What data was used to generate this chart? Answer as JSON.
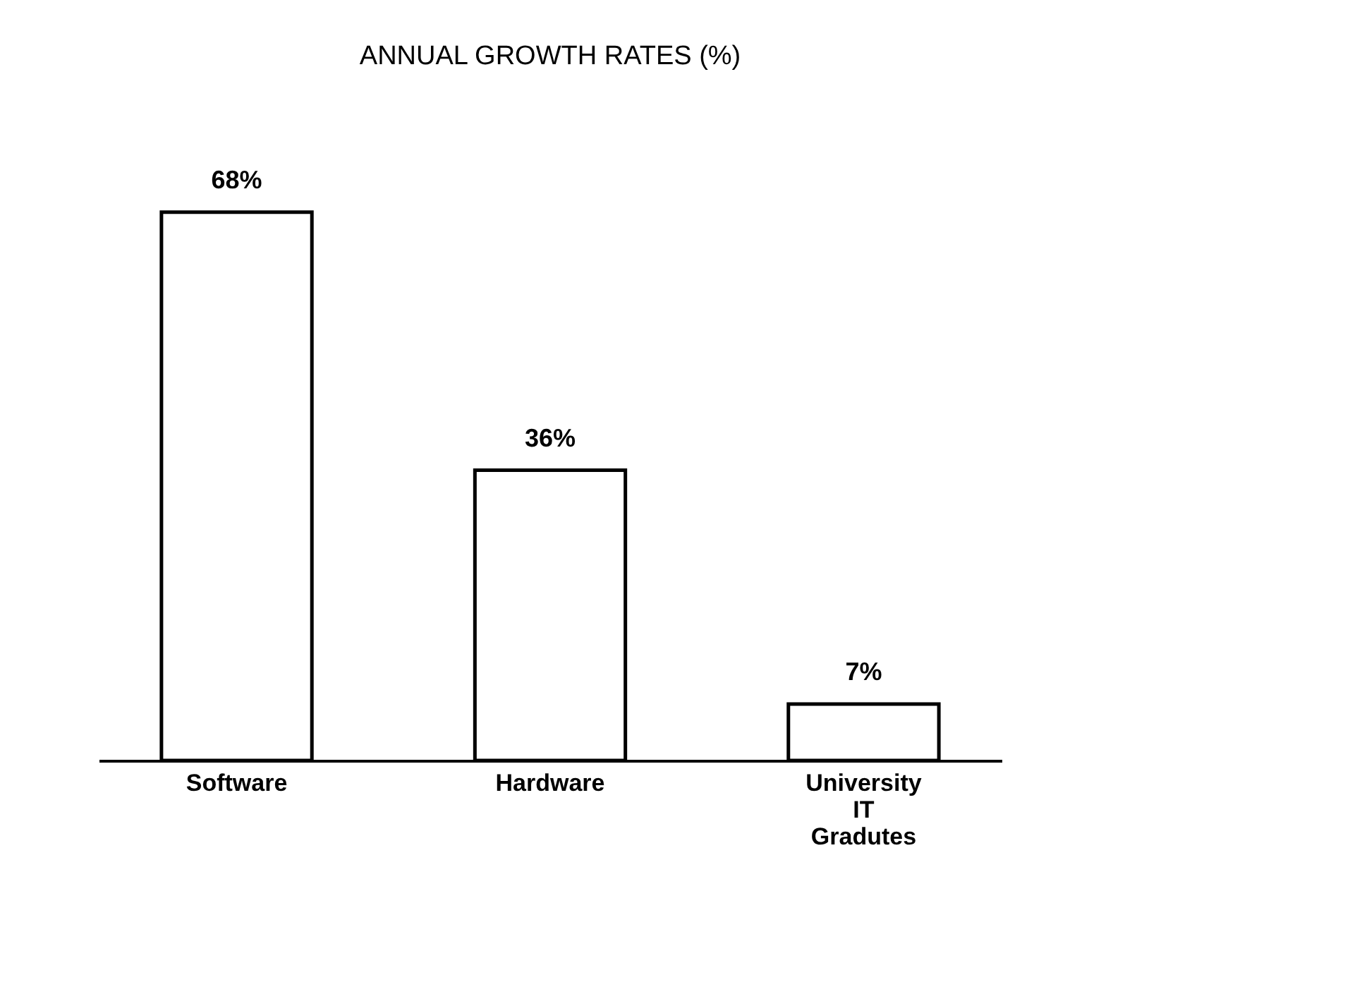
{
  "chart_data": {
    "type": "bar",
    "title": "ANNUAL GROWTH RATES (%)",
    "categories": [
      "Software",
      "Hardware",
      "University IT Gradutes"
    ],
    "values": [
      68,
      36,
      7
    ],
    "value_labels": [
      "68%",
      "36%",
      "7%"
    ],
    "color": "#ffffff",
    "grid": false
  }
}
